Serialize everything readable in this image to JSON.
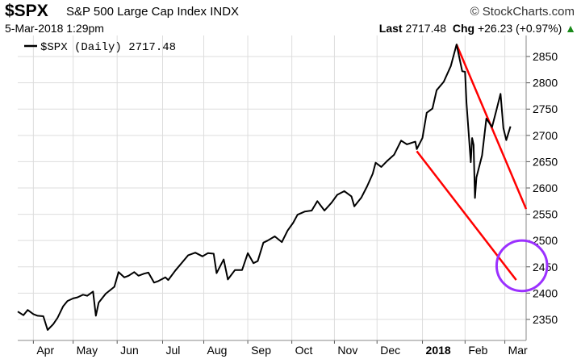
{
  "header": {
    "ticker": "$SPX",
    "name": "S&P 500 Large Cap Index",
    "exchange": "INDX",
    "brand": "© StockCharts.com",
    "date": "5-Mar-2018 1:29pm",
    "last_label": "Last",
    "last_value": "2717.48",
    "chg_label": "Chg",
    "chg_value": "+26.23 (+0.97%)",
    "up_arrow": "▲"
  },
  "colors": {
    "price": "#000000",
    "channel": "#ff0000",
    "circle": "#9b30ff",
    "grid": "#dddddd"
  },
  "chart_data": {
    "type": "line",
    "legend": "$SPX (Daily) 2717.48",
    "legend_position": "top-left",
    "grid": true,
    "ylim": [
      2310,
      2890
    ],
    "xlim": [
      "2017-03-23",
      "2018-03-16"
    ],
    "y_ticks": [
      2350,
      2400,
      2450,
      2500,
      2550,
      2600,
      2650,
      2700,
      2750,
      2800,
      2850
    ],
    "x_ticks": [
      {
        "label": "Apr",
        "date": "2017-04-03"
      },
      {
        "label": "May",
        "date": "2017-05-01"
      },
      {
        "label": "Jun",
        "date": "2017-06-01"
      },
      {
        "label": "Jul",
        "date": "2017-07-03"
      },
      {
        "label": "Aug",
        "date": "2017-08-01"
      },
      {
        "label": "Sep",
        "date": "2017-09-01"
      },
      {
        "label": "Oct",
        "date": "2017-10-02"
      },
      {
        "label": "Nov",
        "date": "2017-11-01"
      },
      {
        "label": "Dec",
        "date": "2017-12-01"
      },
      {
        "label": "2018",
        "date": "2018-01-02",
        "bold": true
      },
      {
        "label": "Feb",
        "date": "2018-02-01"
      },
      {
        "label": "Mar",
        "date": "2018-03-01"
      }
    ],
    "series": [
      {
        "values": [
          [
            "2017-03-23",
            2365
          ],
          [
            "2017-03-27",
            2358
          ],
          [
            "2017-03-30",
            2368
          ],
          [
            "2017-04-03",
            2360
          ],
          [
            "2017-04-06",
            2357
          ],
          [
            "2017-04-10",
            2356
          ],
          [
            "2017-04-13",
            2330
          ],
          [
            "2017-04-17",
            2341
          ],
          [
            "2017-04-20",
            2353
          ],
          [
            "2017-04-24",
            2375
          ],
          [
            "2017-04-27",
            2385
          ],
          [
            "2017-05-01",
            2390
          ],
          [
            "2017-05-04",
            2392
          ],
          [
            "2017-05-08",
            2397
          ],
          [
            "2017-05-11",
            2395
          ],
          [
            "2017-05-15",
            2403
          ],
          [
            "2017-05-17",
            2357
          ],
          [
            "2017-05-19",
            2382
          ],
          [
            "2017-05-24",
            2399
          ],
          [
            "2017-05-30",
            2412
          ],
          [
            "2017-06-02",
            2440
          ],
          [
            "2017-06-06",
            2430
          ],
          [
            "2017-06-09",
            2433
          ],
          [
            "2017-06-13",
            2440
          ],
          [
            "2017-06-16",
            2433
          ],
          [
            "2017-06-20",
            2437
          ],
          [
            "2017-06-23",
            2439
          ],
          [
            "2017-06-27",
            2420
          ],
          [
            "2017-06-30",
            2423
          ],
          [
            "2017-07-05",
            2430
          ],
          [
            "2017-07-07",
            2425
          ],
          [
            "2017-07-12",
            2443
          ],
          [
            "2017-07-17",
            2459
          ],
          [
            "2017-07-21",
            2472
          ],
          [
            "2017-07-26",
            2477
          ],
          [
            "2017-07-31",
            2470
          ],
          [
            "2017-08-04",
            2476
          ],
          [
            "2017-08-08",
            2475
          ],
          [
            "2017-08-10",
            2438
          ],
          [
            "2017-08-15",
            2464
          ],
          [
            "2017-08-18",
            2426
          ],
          [
            "2017-08-23",
            2444
          ],
          [
            "2017-08-28",
            2444
          ],
          [
            "2017-09-01",
            2476
          ],
          [
            "2017-09-05",
            2457
          ],
          [
            "2017-09-08",
            2461
          ],
          [
            "2017-09-12",
            2496
          ],
          [
            "2017-09-15",
            2500
          ],
          [
            "2017-09-20",
            2508
          ],
          [
            "2017-09-25",
            2497
          ],
          [
            "2017-09-29",
            2519
          ],
          [
            "2017-10-03",
            2534
          ],
          [
            "2017-10-06",
            2549
          ],
          [
            "2017-10-11",
            2555
          ],
          [
            "2017-10-16",
            2557
          ],
          [
            "2017-10-20",
            2575
          ],
          [
            "2017-10-25",
            2557
          ],
          [
            "2017-10-30",
            2572
          ],
          [
            "2017-11-03",
            2587
          ],
          [
            "2017-11-08",
            2594
          ],
          [
            "2017-11-13",
            2584
          ],
          [
            "2017-11-15",
            2565
          ],
          [
            "2017-11-20",
            2582
          ],
          [
            "2017-11-24",
            2603
          ],
          [
            "2017-11-28",
            2627
          ],
          [
            "2017-11-30",
            2648
          ],
          [
            "2017-12-04",
            2640
          ],
          [
            "2017-12-08",
            2651
          ],
          [
            "2017-12-13",
            2663
          ],
          [
            "2017-12-18",
            2690
          ],
          [
            "2017-12-22",
            2683
          ],
          [
            "2017-12-28",
            2688
          ],
          [
            "2017-12-29",
            2674
          ],
          [
            "2018-01-02",
            2695
          ],
          [
            "2018-01-05",
            2743
          ],
          [
            "2018-01-09",
            2751
          ],
          [
            "2018-01-12",
            2786
          ],
          [
            "2018-01-17",
            2802
          ],
          [
            "2018-01-22",
            2832
          ],
          [
            "2018-01-26",
            2873
          ],
          [
            "2018-01-30",
            2822
          ],
          [
            "2018-02-01",
            2821
          ],
          [
            "2018-02-02",
            2762
          ],
          [
            "2018-02-05",
            2649
          ],
          [
            "2018-02-06",
            2695
          ],
          [
            "2018-02-07",
            2682
          ],
          [
            "2018-02-08",
            2581
          ],
          [
            "2018-02-09",
            2620
          ],
          [
            "2018-02-13",
            2662
          ],
          [
            "2018-02-16",
            2732
          ],
          [
            "2018-02-20",
            2716
          ],
          [
            "2018-02-23",
            2747
          ],
          [
            "2018-02-26",
            2779
          ],
          [
            "2018-02-28",
            2714
          ],
          [
            "2018-03-02",
            2691
          ],
          [
            "2018-03-05",
            2717
          ]
        ]
      }
    ],
    "annotations": [
      {
        "type": "trendline",
        "from": [
          "2018-01-26",
          2873
        ],
        "to": [
          "2018-03-16",
          2560
        ]
      },
      {
        "type": "trendline",
        "from": [
          "2017-12-29",
          2670
        ],
        "to": [
          "2018-03-09",
          2425
        ]
      },
      {
        "type": "circle",
        "center": [
          "2018-03-13",
          2452
        ],
        "radius_y_units": 48
      }
    ]
  }
}
